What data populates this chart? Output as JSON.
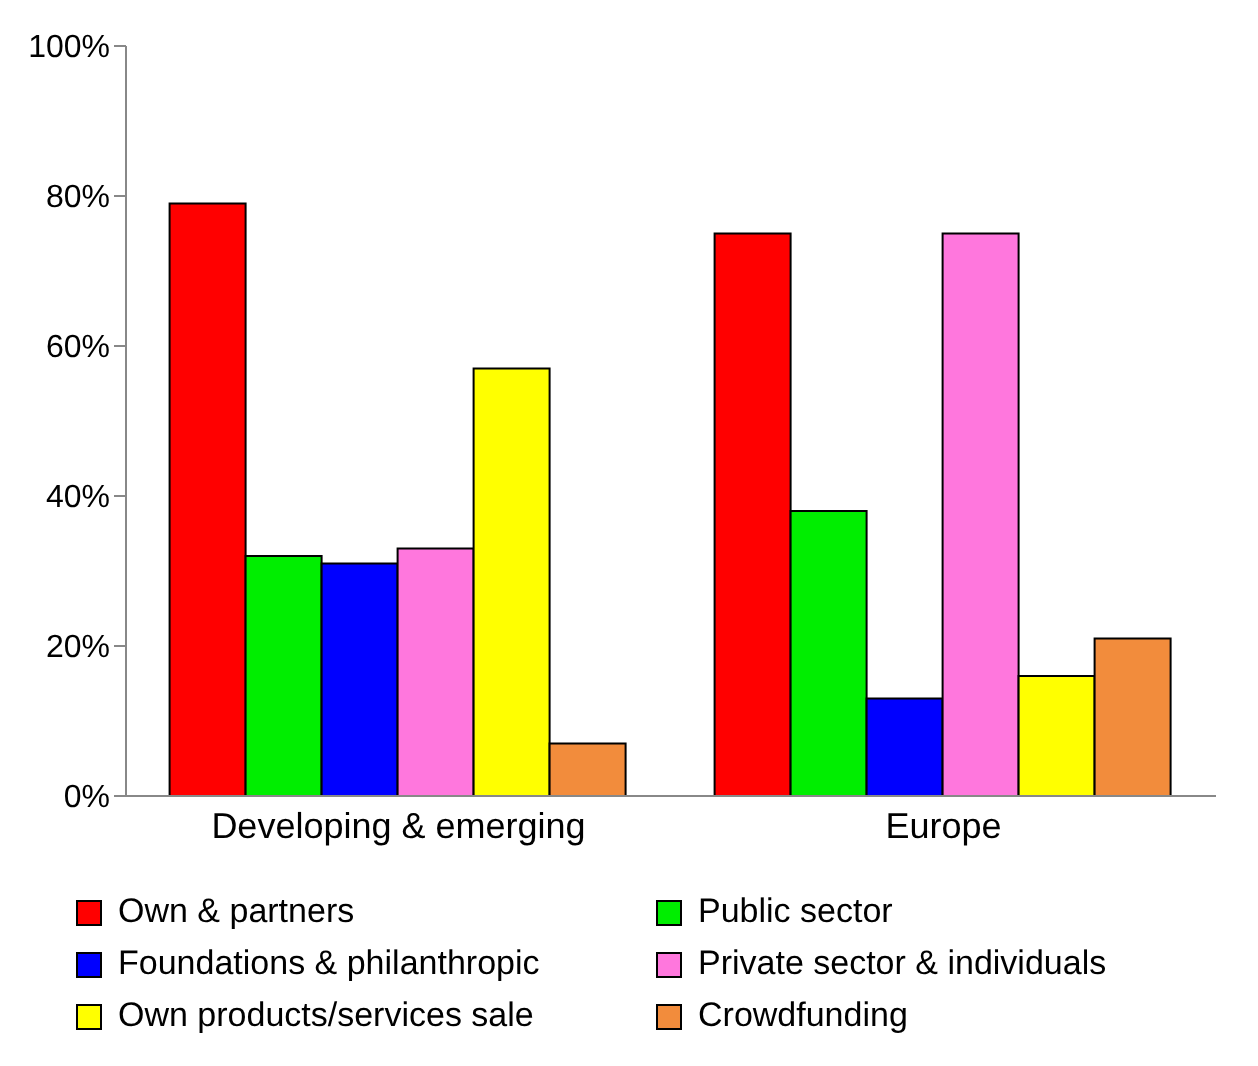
{
  "chart_data": {
    "type": "bar",
    "categories": [
      "Developing & emerging",
      "Europe"
    ],
    "series": [
      {
        "name": "Own & partners",
        "color": "#ff0000",
        "values": [
          79,
          75
        ]
      },
      {
        "name": "Public sector",
        "color": "#00ee00",
        "values": [
          32,
          38
        ]
      },
      {
        "name": "Foundations & philanthropic",
        "color": "#0000ff",
        "values": [
          31,
          13
        ]
      },
      {
        "name": "Private sector & individuals",
        "color": "#ff77dd",
        "values": [
          33,
          75
        ]
      },
      {
        "name": "Own products/services sale",
        "color": "#ffff00",
        "values": [
          57,
          16
        ]
      },
      {
        "name": "Crowdfunding",
        "color": "#f28c3c",
        "values": [
          7,
          21
        ]
      }
    ],
    "ylim": [
      0,
      100
    ],
    "yticks": [
      {
        "value": 0,
        "label": "0%"
      },
      {
        "value": 20,
        "label": "20%"
      },
      {
        "value": 40,
        "label": "40%"
      },
      {
        "value": 60,
        "label": "60%"
      },
      {
        "value": 80,
        "label": "80%"
      },
      {
        "value": 100,
        "label": "100%"
      }
    ],
    "grid": false,
    "legend": "bottom"
  }
}
